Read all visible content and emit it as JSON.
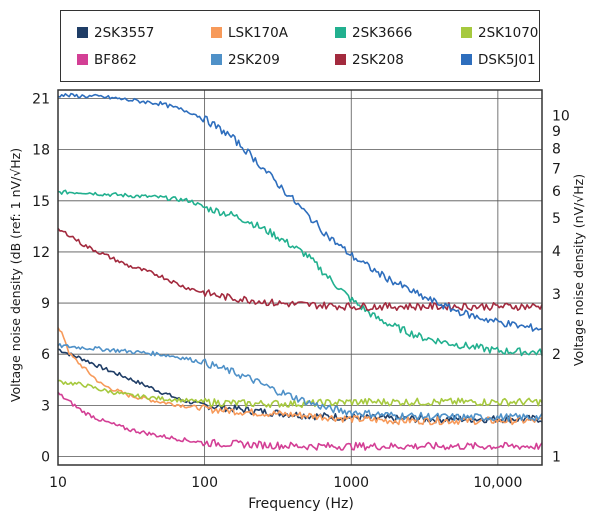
{
  "chart_data": {
    "type": "line",
    "xlabel": "Frequency (Hz)",
    "ylabel": "Voltage noise density  (dB (ref: 1 nV/√Hz)",
    "y2label": "Voltage noise density  (nV/√Hz)",
    "x_scale": "log",
    "xlim": [
      10,
      20000
    ],
    "ylim": [
      -0.5,
      21.5
    ],
    "x_ticks": [
      10,
      100,
      1000,
      10000
    ],
    "x_tick_labels": [
      "10",
      "100",
      "1000",
      "10,000"
    ],
    "y_ticks": [
      0,
      3,
      6,
      9,
      12,
      15,
      18,
      21
    ],
    "y_tick_labels": [
      "0",
      "3",
      "6",
      "9",
      "12",
      "15",
      "18",
      "21"
    ],
    "y2_ticks": [
      1,
      2,
      3,
      4,
      5,
      6,
      7,
      8,
      9,
      10
    ],
    "y2_tick_labels": [
      "1",
      "2",
      "3",
      "4",
      "5",
      "6",
      "7",
      "8",
      "9",
      "10"
    ],
    "grid": true,
    "legend_position": "top",
    "series": [
      {
        "name": "2SK3557",
        "color": "#1f3d66",
        "x": [
          10,
          12,
          15,
          20,
          30,
          50,
          70,
          100,
          200,
          500,
          1000,
          2000,
          5000,
          10000,
          20000
        ],
        "y": [
          6.3,
          6.0,
          5.7,
          5.2,
          4.6,
          3.8,
          3.3,
          3.0,
          2.7,
          2.4,
          2.3,
          2.2,
          2.2,
          2.2,
          2.2
        ]
      },
      {
        "name": "LSK170A",
        "color": "#f79a5a",
        "x": [
          10,
          11,
          12,
          15,
          20,
          30,
          50,
          70,
          100,
          200,
          500,
          1000,
          2000,
          5000,
          10000,
          20000
        ],
        "y": [
          7.5,
          7.0,
          6.0,
          5.2,
          4.2,
          3.6,
          3.2,
          3.0,
          2.8,
          2.6,
          2.4,
          2.2,
          2.1,
          2.1,
          2.1,
          2.1
        ]
      },
      {
        "name": "2SK3666",
        "color": "#22b08f",
        "x": [
          10,
          15,
          20,
          50,
          80,
          100,
          150,
          200,
          300,
          500,
          700,
          1000,
          1500,
          2000,
          3000,
          5000,
          10000,
          20000
        ],
        "y": [
          15.5,
          15.5,
          15.4,
          15.2,
          15.0,
          14.6,
          14.2,
          13.8,
          13.0,
          11.8,
          10.5,
          9.2,
          8.1,
          7.6,
          7.0,
          6.6,
          6.2,
          6.1
        ]
      },
      {
        "name": "2SK1070",
        "color": "#a6c93e",
        "x": [
          10,
          15,
          20,
          30,
          50,
          100,
          200,
          500,
          1000,
          2000,
          5000,
          10000,
          20000
        ],
        "y": [
          4.4,
          4.2,
          3.9,
          3.6,
          3.4,
          3.2,
          3.1,
          3.1,
          3.2,
          3.2,
          3.2,
          3.2,
          3.2
        ]
      },
      {
        "name": "BF862",
        "color": "#d33f95",
        "x": [
          10,
          12,
          15,
          20,
          30,
          50,
          70,
          100,
          200,
          500,
          1000,
          2000,
          5000,
          10000,
          20000
        ],
        "y": [
          3.7,
          3.2,
          2.6,
          2.1,
          1.6,
          1.2,
          1.0,
          0.8,
          0.7,
          0.6,
          0.6,
          0.6,
          0.6,
          0.6,
          0.6
        ]
      },
      {
        "name": "2SK209",
        "color": "#4f91c8",
        "x": [
          10,
          20,
          50,
          70,
          100,
          150,
          200,
          300,
          500,
          700,
          1000,
          2000,
          5000,
          10000,
          20000
        ],
        "y": [
          6.5,
          6.3,
          6.0,
          5.8,
          5.5,
          5.0,
          4.6,
          3.9,
          3.2,
          2.8,
          2.6,
          2.4,
          2.3,
          2.3,
          2.3
        ]
      },
      {
        "name": "2SK208",
        "color": "#a32a3e",
        "x": [
          10,
          12,
          15,
          20,
          30,
          50,
          70,
          100,
          150,
          200,
          300,
          500,
          1000,
          2000,
          5000,
          10000,
          20000
        ],
        "y": [
          13.3,
          13.0,
          12.4,
          11.9,
          11.2,
          10.6,
          10.0,
          9.6,
          9.3,
          9.2,
          9.0,
          8.9,
          8.8,
          8.8,
          8.8,
          8.8,
          8.8
        ]
      },
      {
        "name": "DSK5J01",
        "color": "#2e6ebd",
        "x": [
          10,
          20,
          50,
          80,
          100,
          150,
          200,
          300,
          500,
          700,
          1000,
          1500,
          2000,
          3000,
          5000,
          7000,
          10000,
          15000,
          20000
        ],
        "y": [
          21.2,
          21.1,
          20.7,
          20.2,
          19.8,
          18.8,
          17.8,
          16.2,
          14.2,
          12.9,
          11.8,
          10.8,
          10.2,
          9.4,
          8.6,
          8.2,
          7.9,
          7.6,
          7.5
        ]
      }
    ]
  }
}
